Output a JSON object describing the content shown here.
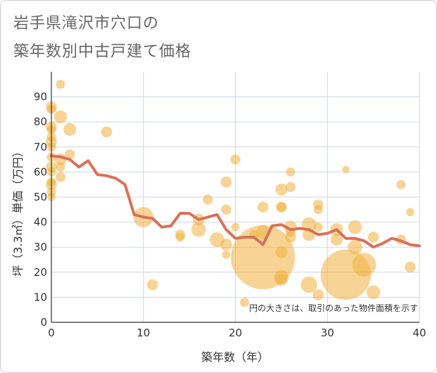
{
  "title_line1": "岩手県滝沢市穴口の",
  "title_line2": "築年数別中古戸建て価格",
  "chart_data": {
    "type": "scatter",
    "xlabel": "築年数（年）",
    "ylabel": "坪（3.3㎡）単価（万円）",
    "xlim": [
      0,
      40
    ],
    "ylim": [
      0,
      100
    ],
    "xticks": [
      0,
      10,
      20,
      30,
      40
    ],
    "yticks": [
      0,
      10,
      20,
      30,
      40,
      50,
      60,
      70,
      80,
      90
    ],
    "note": "円の大きさは、取引のあった物件面積を示す",
    "colors": {
      "bubble": "#f0b040",
      "line": "#d9705a",
      "grid": "#cfd6e6"
    },
    "bubbles": [
      {
        "x": 0,
        "y": 86,
        "s": 1.2
      },
      {
        "x": 0,
        "y": 85,
        "s": 1.0
      },
      {
        "x": 0,
        "y": 78,
        "s": 1.2
      },
      {
        "x": 0,
        "y": 77,
        "s": 1.0
      },
      {
        "x": 0,
        "y": 74,
        "s": 1.0
      },
      {
        "x": 0,
        "y": 72,
        "s": 1.2
      },
      {
        "x": 0,
        "y": 70,
        "s": 1.0
      },
      {
        "x": 0,
        "y": 66,
        "s": 1.0
      },
      {
        "x": 0,
        "y": 62,
        "s": 1.2
      },
      {
        "x": 0,
        "y": 60,
        "s": 1.0
      },
      {
        "x": 0,
        "y": 56,
        "s": 1.0
      },
      {
        "x": 0,
        "y": 55,
        "s": 1.2
      },
      {
        "x": 0,
        "y": 52,
        "s": 1.0
      },
      {
        "x": 0,
        "y": 50,
        "s": 0.9
      },
      {
        "x": 1,
        "y": 95,
        "s": 1.0
      },
      {
        "x": 1,
        "y": 82,
        "s": 1.4
      },
      {
        "x": 1,
        "y": 65,
        "s": 1.3
      },
      {
        "x": 1,
        "y": 62,
        "s": 1.0
      },
      {
        "x": 1,
        "y": 58,
        "s": 1.1
      },
      {
        "x": 2,
        "y": 77,
        "s": 1.4
      },
      {
        "x": 2,
        "y": 67,
        "s": 1.1
      },
      {
        "x": 6,
        "y": 76,
        "s": 1.2
      },
      {
        "x": 10,
        "y": 42,
        "s": 2.2
      },
      {
        "x": 11,
        "y": 15,
        "s": 1.2
      },
      {
        "x": 14,
        "y": 35,
        "s": 1.1
      },
      {
        "x": 14,
        "y": 34,
        "s": 1.0
      },
      {
        "x": 16,
        "y": 41,
        "s": 1.3
      },
      {
        "x": 16,
        "y": 37,
        "s": 1.6
      },
      {
        "x": 17,
        "y": 49,
        "s": 1.1
      },
      {
        "x": 18,
        "y": 33,
        "s": 1.6
      },
      {
        "x": 19,
        "y": 56,
        "s": 1.2
      },
      {
        "x": 19,
        "y": 45,
        "s": 1.1
      },
      {
        "x": 19,
        "y": 31,
        "s": 1.3
      },
      {
        "x": 19,
        "y": 27,
        "s": 0.9
      },
      {
        "x": 20,
        "y": 65,
        "s": 1.1
      },
      {
        "x": 20,
        "y": 38,
        "s": 0.9
      },
      {
        "x": 21,
        "y": 8,
        "s": 1.0
      },
      {
        "x": 22,
        "y": 35,
        "s": 1.0
      },
      {
        "x": 23,
        "y": 46,
        "s": 1.2
      },
      {
        "x": 23,
        "y": 36,
        "s": 1.5
      },
      {
        "x": 23,
        "y": 26,
        "s": 7.0
      },
      {
        "x": 25,
        "y": 53,
        "s": 1.3
      },
      {
        "x": 25,
        "y": 46,
        "s": 1.0
      },
      {
        "x": 25,
        "y": 46,
        "s": 1.2
      },
      {
        "x": 25,
        "y": 28,
        "s": 1.3
      },
      {
        "x": 25,
        "y": 18,
        "s": 1.6
      },
      {
        "x": 25,
        "y": 17,
        "s": 1.3
      },
      {
        "x": 26,
        "y": 60,
        "s": 1.0
      },
      {
        "x": 26,
        "y": 54,
        "s": 1.1
      },
      {
        "x": 26,
        "y": 38,
        "s": 1.4
      },
      {
        "x": 26,
        "y": 36,
        "s": 1.1
      },
      {
        "x": 26,
        "y": 34,
        "s": 1.2
      },
      {
        "x": 28,
        "y": 39,
        "s": 1.6
      },
      {
        "x": 28,
        "y": 35,
        "s": 1.4
      },
      {
        "x": 28,
        "y": 15,
        "s": 1.8
      },
      {
        "x": 29,
        "y": 47,
        "s": 1.1
      },
      {
        "x": 29,
        "y": 45,
        "s": 1.0
      },
      {
        "x": 29,
        "y": 38,
        "s": 1.0
      },
      {
        "x": 29,
        "y": 11,
        "s": 1.2
      },
      {
        "x": 31,
        "y": 37,
        "s": 1.4
      },
      {
        "x": 31,
        "y": 33,
        "s": 1.3
      },
      {
        "x": 32,
        "y": 61,
        "s": 0.8
      },
      {
        "x": 32,
        "y": 19,
        "s": 5.5
      },
      {
        "x": 33,
        "y": 38,
        "s": 1.5
      },
      {
        "x": 33,
        "y": 30,
        "s": 1.6
      },
      {
        "x": 34,
        "y": 23,
        "s": 2.6
      },
      {
        "x": 35,
        "y": 34,
        "s": 1.2
      },
      {
        "x": 35,
        "y": 12,
        "s": 1.5
      },
      {
        "x": 38,
        "y": 55,
        "s": 1.0
      },
      {
        "x": 38,
        "y": 33,
        "s": 1.1
      },
      {
        "x": 39,
        "y": 44,
        "s": 0.9
      },
      {
        "x": 39,
        "y": 22,
        "s": 1.2
      }
    ],
    "trend": {
      "x": [
        0,
        1,
        2,
        3,
        4,
        5,
        6,
        7,
        8,
        9,
        10,
        11,
        12,
        13,
        14,
        15,
        16,
        17,
        18,
        19,
        20,
        21,
        22,
        23,
        24,
        25,
        26,
        27,
        28,
        29,
        30,
        31,
        32,
        33,
        34,
        35,
        36,
        37,
        38,
        39,
        40
      ],
      "y": [
        66.5,
        66,
        65,
        62,
        64.5,
        59,
        58.5,
        57.5,
        55,
        43,
        42,
        41.5,
        38,
        38.5,
        43.5,
        43.5,
        41,
        42,
        43,
        37,
        33.5,
        34,
        34,
        31,
        38.5,
        39,
        37,
        37.5,
        37,
        35,
        35.5,
        37,
        33.5,
        33.5,
        32.5,
        30,
        31.5,
        33.5,
        32.5,
        31,
        30.5
      ]
    }
  }
}
